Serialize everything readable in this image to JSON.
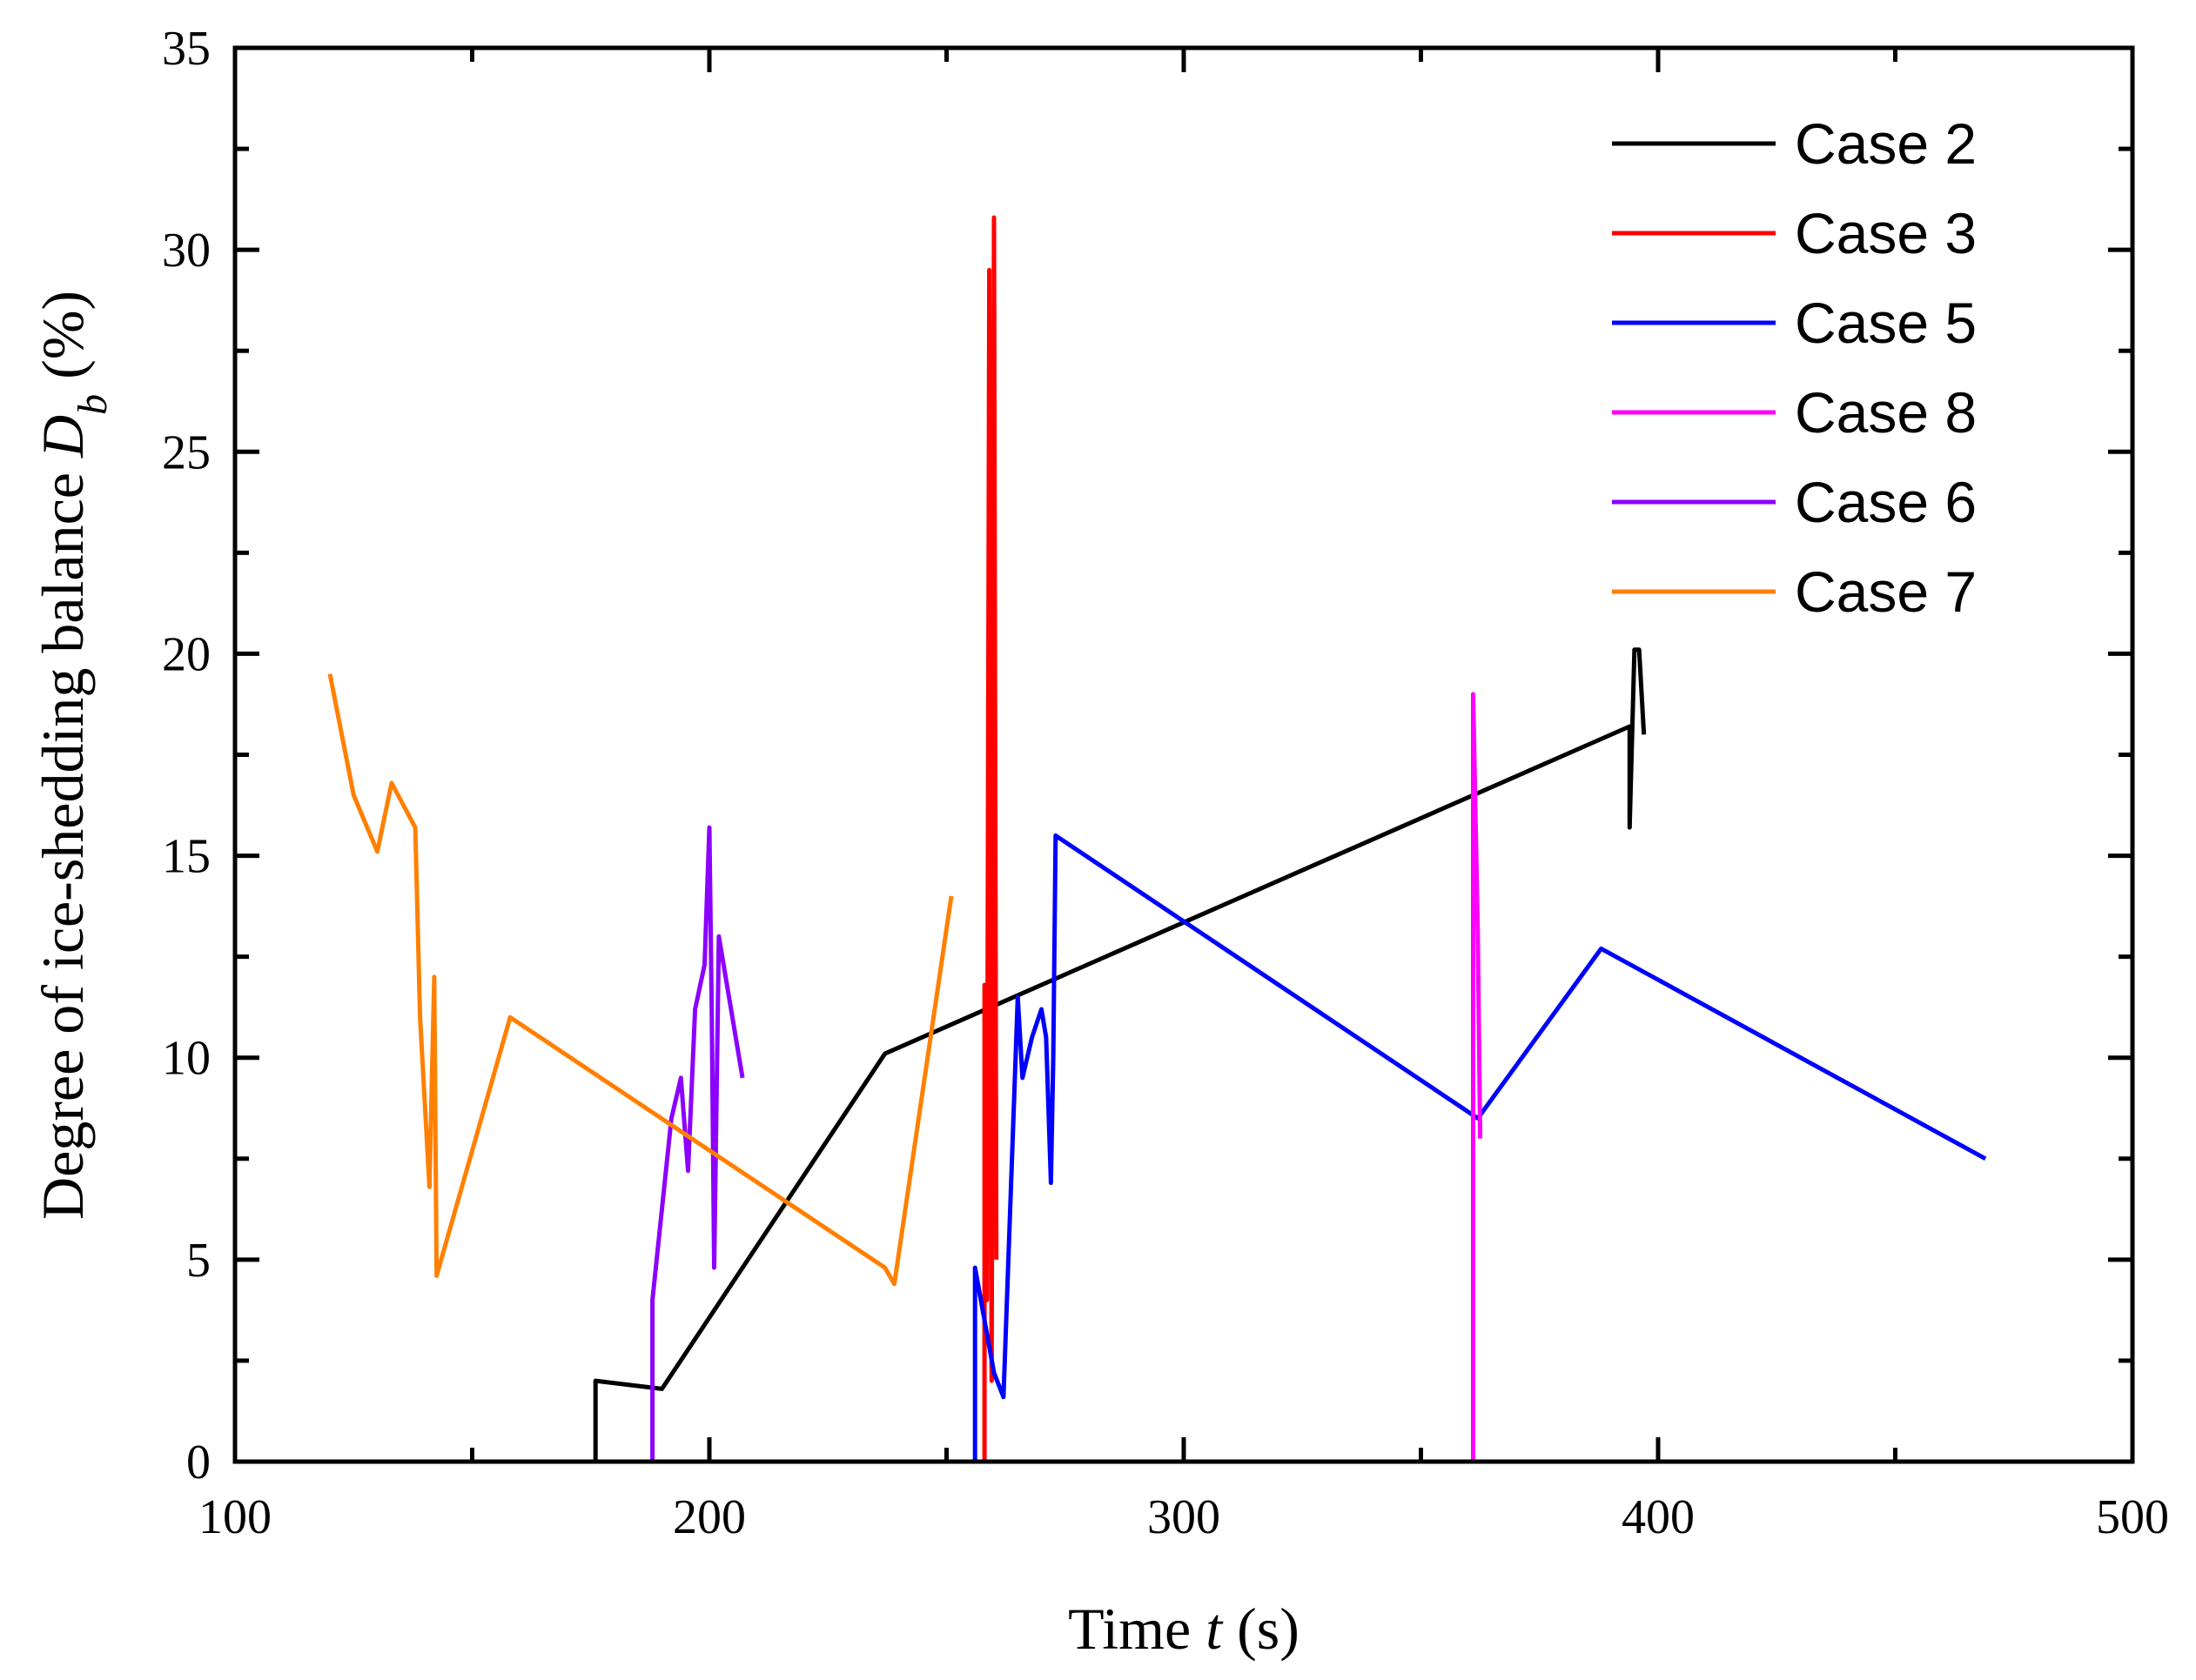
{
  "chart_data": {
    "type": "line",
    "title": "",
    "xlabel": {
      "prefix": "Time ",
      "variable": "t",
      "suffix": " (s)"
    },
    "ylabel": {
      "prefix": "Degree of ice-shedding balance ",
      "variable": "D",
      "subscript": "b",
      "suffix": " (%)"
    },
    "xlim": [
      100,
      500
    ],
    "ylim": [
      0,
      35
    ],
    "xticks": [
      100,
      200,
      300,
      400,
      500
    ],
    "yticks": [
      0,
      5,
      10,
      15,
      20,
      25,
      30,
      35
    ],
    "grid": false,
    "legend_position": "top-right",
    "series": [
      {
        "name": "Case 2",
        "color": "#000000",
        "points": [
          [
            176,
            0
          ],
          [
            176,
            2
          ],
          [
            190,
            1.8
          ],
          [
            237,
            10.1
          ],
          [
            394,
            18.2
          ],
          [
            394,
            15.7
          ],
          [
            395,
            20.1
          ],
          [
            396,
            20.1
          ],
          [
            397,
            18
          ]
        ]
      },
      {
        "name": "Case 3",
        "color": "#ff0000",
        "points": [
          [
            258,
            0
          ],
          [
            258,
            11.8
          ],
          [
            258.5,
            4
          ],
          [
            259,
            29.5
          ],
          [
            259.5,
            2
          ],
          [
            260,
            30.8
          ],
          [
            260.5,
            5
          ]
        ]
      },
      {
        "name": "Case 5",
        "color": "#0000ff",
        "points": [
          [
            256,
            0
          ],
          [
            256,
            4.8
          ],
          [
            258,
            3.5
          ],
          [
            260,
            2.2
          ],
          [
            262,
            1.6
          ],
          [
            265,
            11.5
          ],
          [
            266,
            9.5
          ],
          [
            268,
            10.5
          ],
          [
            270,
            11.2
          ],
          [
            271,
            10.5
          ],
          [
            272,
            6.9
          ],
          [
            272.5,
            10
          ],
          [
            273,
            15.5
          ],
          [
            362,
            8.5
          ],
          [
            388,
            12.7
          ],
          [
            469,
            7.5
          ]
        ]
      },
      {
        "name": "Case 8",
        "color": "#ff00ff",
        "points": [
          [
            361,
            0
          ],
          [
            361,
            19
          ],
          [
            362,
            13
          ],
          [
            362.5,
            8
          ]
        ]
      },
      {
        "name": "Case 6",
        "color": "#8b00ff",
        "points": [
          [
            188,
            0
          ],
          [
            188,
            4
          ],
          [
            192,
            8.5
          ],
          [
            194,
            9.5
          ],
          [
            195.5,
            7.2
          ],
          [
            197,
            11.2
          ],
          [
            199,
            12.3
          ],
          [
            200,
            15.7
          ],
          [
            200.5,
            11.2
          ],
          [
            201,
            4.8
          ],
          [
            202,
            13
          ],
          [
            207,
            9.5
          ]
        ]
      },
      {
        "name": "Case 7",
        "color": "#ff8000",
        "points": [
          [
            120,
            19.5
          ],
          [
            125,
            16.5
          ],
          [
            130,
            15.1
          ],
          [
            133,
            16.8
          ],
          [
            138,
            15.7
          ],
          [
            139,
            11
          ],
          [
            141,
            6.8
          ],
          [
            142,
            12
          ],
          [
            142.5,
            4.6
          ],
          [
            158,
            11
          ],
          [
            237,
            4.8
          ],
          [
            239,
            4.4
          ],
          [
            251,
            14
          ]
        ]
      }
    ]
  }
}
